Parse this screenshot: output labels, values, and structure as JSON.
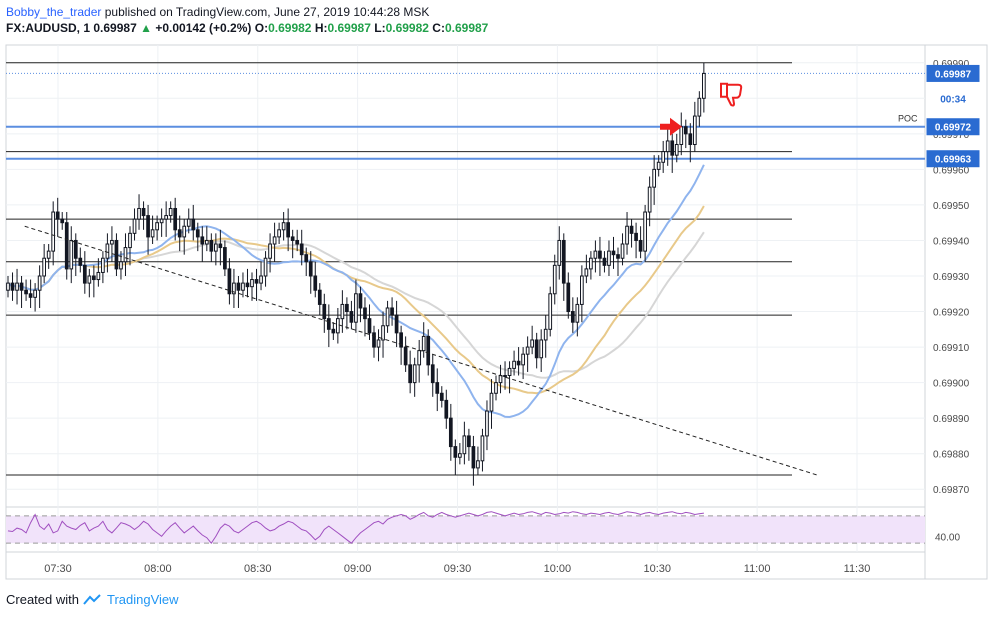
{
  "header": {
    "author": "Bobby_the_trader",
    "published_text": "published on TradingView.com, June 27, 2019 10:44:28 MSK",
    "symbol": "FX:AUDUSD, 1",
    "last": "0.69987",
    "change": "+0.00142 (+0.2%)",
    "open_label": "O:",
    "open": "0.69982",
    "high_label": "H:",
    "high": "0.69987",
    "low_label": "L:",
    "low": "0.69982",
    "close_label": "C:",
    "close": "0.69987"
  },
  "footer": {
    "created_with": "Created with",
    "brand": "TradingView",
    "logo_icon": "tradingview-logo-icon"
  },
  "colors": {
    "grid": "#eef1f4",
    "axis_text": "#4a4a4a",
    "candle": "#131722",
    "zone_line": "#5b8ee0",
    "label_bg": "#2a6bd1",
    "ma_blue": "#8fb4ee",
    "ma_gold": "#e8c98a",
    "ma_grey": "#d6d6d6",
    "rsi_bg": "#f1e3fa",
    "rsi_line": "#a04fc0",
    "arrow": "#ee2020",
    "change_up": "#21a04a"
  },
  "chart_data": {
    "type": "candlestick",
    "symbol": "FX:AUDUSD",
    "timeframe": "1",
    "x_ticks": [
      "07:30",
      "08:00",
      "08:30",
      "09:00",
      "09:30",
      "10:00",
      "10:30",
      "11:00",
      "11:30"
    ],
    "y_ticks": [
      "0.69870",
      "0.69880",
      "0.69890",
      "0.69900",
      "0.69910",
      "0.69920",
      "0.69930",
      "0.69940",
      "0.69950",
      "0.69960",
      "0.69970",
      "0.69980",
      "0.69990"
    ],
    "ylim": [
      0.69865,
      0.69995
    ],
    "price_labels": [
      {
        "text": "0.69987",
        "value": 0.69987,
        "kind": "last"
      },
      {
        "text": "00:34",
        "value": 0.6998,
        "kind": "countdown"
      },
      {
        "text": "0.69972",
        "value": 0.69972,
        "kind": "level"
      },
      {
        "text": "0.69963",
        "value": 0.69963,
        "kind": "level"
      }
    ],
    "poc_label": "POC",
    "horizontal_lines": [
      0.6999,
      0.69965,
      0.69946,
      0.69934,
      0.69919,
      0.69874
    ],
    "blue_zone_lines": [
      0.69972,
      0.69963
    ],
    "trend_line": {
      "from": [
        "07:20",
        0.69944
      ],
      "to": [
        "11:18",
        0.69874
      ],
      "style": "dashed"
    },
    "candles_close": [
      0.69928,
      0.69926,
      0.69928,
      0.69926,
      0.69925,
      0.69924,
      0.69926,
      0.6993,
      0.69935,
      0.69937,
      0.69948,
      0.69946,
      0.69945,
      0.69932,
      0.6994,
      0.69935,
      0.69933,
      0.69928,
      0.6993,
      0.69929,
      0.69931,
      0.69935,
      0.69939,
      0.6994,
      0.69932,
      0.69934,
      0.69938,
      0.69942,
      0.69946,
      0.69949,
      0.69947,
      0.69941,
      0.69943,
      0.69945,
      0.69946,
      0.69947,
      0.69949,
      0.69943,
      0.69941,
      0.69944,
      0.69946,
      0.69943,
      0.69941,
      0.69939,
      0.6994,
      0.69937,
      0.69939,
      0.69938,
      0.69932,
      0.69925,
      0.69928,
      0.69926,
      0.69928,
      0.69927,
      0.69929,
      0.69928,
      0.6993,
      0.69935,
      0.69939,
      0.69941,
      0.69943,
      0.69945,
      0.69941,
      0.6994,
      0.69939,
      0.69936,
      0.69934,
      0.6993,
      0.69926,
      0.69922,
      0.69918,
      0.69915,
      0.69914,
      0.69918,
      0.69922,
      0.6992,
      0.69917,
      0.69925,
      0.69921,
      0.69918,
      0.69914,
      0.6991,
      0.69912,
      0.69916,
      0.69921,
      0.69919,
      0.69914,
      0.6991,
      0.69905,
      0.699,
      0.69905,
      0.69909,
      0.69913,
      0.69905,
      0.699,
      0.69897,
      0.69895,
      0.6989,
      0.69882,
      0.69879,
      0.6988,
      0.69885,
      0.69882,
      0.69876,
      0.69878,
      0.69885,
      0.69892,
      0.69897,
      0.699,
      0.69902,
      0.69902,
      0.69904,
      0.69906,
      0.69905,
      0.69908,
      0.6991,
      0.69912,
      0.69907,
      0.69912,
      0.69915,
      0.69925,
      0.69933,
      0.6994,
      0.69928,
      0.6992,
      0.69917,
      0.69922,
      0.6993,
      0.69932,
      0.69935,
      0.69937,
      0.69935,
      0.69933,
      0.69937,
      0.69936,
      0.69935,
      0.69939,
      0.69944,
      0.69942,
      0.6994,
      0.69937,
      0.69948,
      0.69955,
      0.6996,
      0.69962,
      0.69965,
      0.69968,
      0.69964,
      0.69967,
      0.69972,
      0.6997,
      0.69967,
      0.69975,
      0.6998,
      0.69987
    ],
    "rsi": {
      "upper_band": 70,
      "lower_band": 30,
      "visible_tick": "40.00",
      "ylim": [
        20,
        80
      ],
      "values": [
        48,
        47,
        52,
        50,
        45,
        60,
        72,
        55,
        50,
        58,
        45,
        48,
        62,
        55,
        52,
        50,
        56,
        60,
        48,
        52,
        55,
        62,
        50,
        45,
        52,
        60,
        58,
        55,
        50,
        55,
        62,
        58,
        50,
        45,
        40,
        48,
        55,
        60,
        52,
        45,
        50,
        55,
        48,
        42,
        38,
        30,
        40,
        52,
        58,
        55,
        48,
        45,
        50,
        55,
        60,
        62,
        58,
        52,
        48,
        50,
        55,
        58,
        62,
        60,
        55,
        50,
        48,
        42,
        35,
        40,
        50,
        55,
        50,
        45,
        40,
        35,
        30,
        38,
        45,
        50,
        55,
        60,
        62,
        58,
        65,
        68,
        70,
        72,
        70,
        65,
        68,
        72,
        75,
        70,
        68,
        72,
        75,
        72,
        70,
        68,
        70,
        72,
        74,
        72,
        70,
        72,
        75,
        76,
        74,
        72,
        70,
        72,
        74,
        72,
        73,
        75,
        76,
        74,
        72,
        75,
        74,
        72,
        73,
        75,
        74,
        76,
        75,
        73,
        72,
        74,
        73,
        72,
        74,
        75,
        73,
        72,
        74,
        76,
        75,
        74,
        72,
        74,
        75,
        73,
        72,
        74,
        75,
        76,
        74,
        73,
        75,
        74,
        72,
        73,
        74
      ]
    }
  }
}
